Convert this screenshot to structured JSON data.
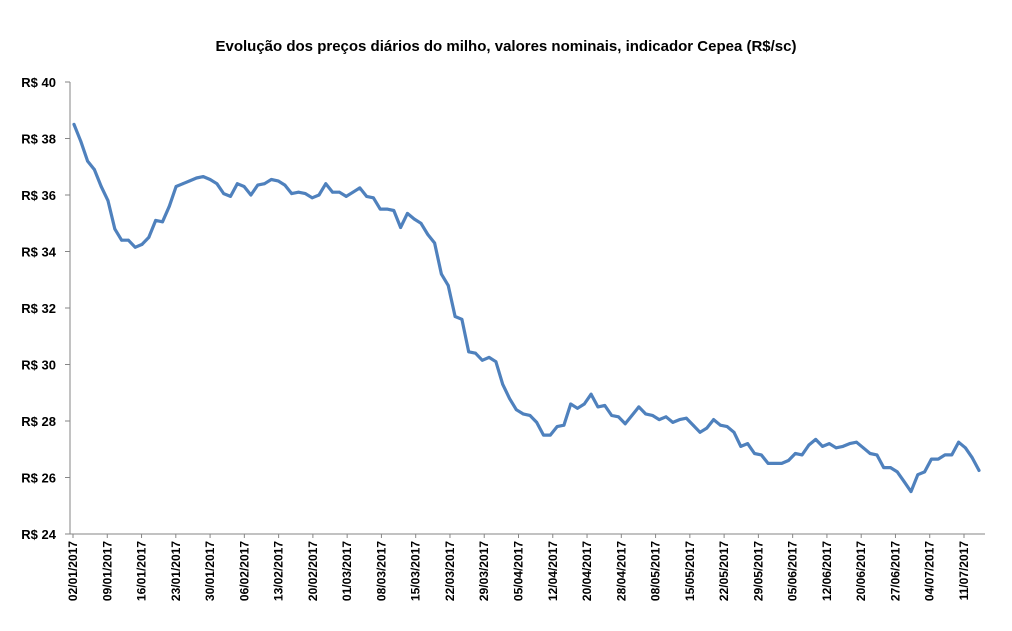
{
  "chart_data": {
    "type": "line",
    "title": "Evolução dos preços diários do milho, valores nominais, indicador Cepea (R$/sc)",
    "xlabel": "",
    "ylabel": "",
    "ylim": [
      24,
      40
    ],
    "yticks": [
      24,
      26,
      28,
      30,
      32,
      34,
      36,
      38,
      40
    ],
    "ytick_prefix": "R$ ",
    "grid": false,
    "legend": "none",
    "line_color": "#4f81bd",
    "xtick_labels": [
      "02/01/2017",
      "09/01/2017",
      "16/01/2017",
      "23/01/2017",
      "30/01/2017",
      "06/02/2017",
      "13/02/2017",
      "20/02/2017",
      "01/03/2017",
      "08/03/2017",
      "15/03/2017",
      "22/03/2017",
      "29/03/2017",
      "05/04/2017",
      "12/04/2017",
      "20/04/2017",
      "28/04/2017",
      "08/05/2017",
      "15/05/2017",
      "22/05/2017",
      "29/05/2017",
      "05/06/2017",
      "12/06/2017",
      "20/06/2017",
      "27/06/2017",
      "04/07/2017",
      "11/07/2017"
    ],
    "series": [
      {
        "values": [
          38.5,
          37.9,
          37.2,
          36.9,
          36.3,
          35.8,
          34.8,
          34.4,
          34.4,
          34.15,
          34.25,
          34.5,
          35.1,
          35.05,
          35.6,
          36.3,
          36.4,
          36.5,
          36.6,
          36.65,
          36.55,
          36.4,
          36.05,
          35.95,
          36.4,
          36.3,
          36.0,
          36.35,
          36.4,
          36.55,
          36.5,
          36.35,
          36.05,
          36.1,
          36.05,
          35.9,
          36.0,
          36.4,
          36.1,
          36.1,
          35.95,
          36.1,
          36.25,
          35.95,
          35.9,
          35.5,
          35.5,
          35.45,
          34.85,
          35.35,
          35.15,
          35.0,
          34.6,
          34.3,
          33.2,
          32.8,
          31.7,
          31.6,
          30.45,
          30.4,
          30.15,
          30.25,
          30.1,
          29.3,
          28.8,
          28.4,
          28.25,
          28.2,
          27.95,
          27.5,
          27.5,
          27.8,
          27.85,
          28.6,
          28.45,
          28.6,
          28.95,
          28.5,
          28.55,
          28.2,
          28.15,
          27.9,
          28.2,
          28.5,
          28.25,
          28.2,
          28.05,
          28.15,
          27.95,
          28.05,
          28.1,
          27.85,
          27.6,
          27.75,
          28.05,
          27.85,
          27.8,
          27.6,
          27.1,
          27.2,
          26.85,
          26.8,
          26.5,
          26.5,
          26.5,
          26.6,
          26.85,
          26.8,
          27.15,
          27.35,
          27.1,
          27.2,
          27.05,
          27.1,
          27.2,
          27.25,
          27.05,
          26.85,
          26.8,
          26.35,
          26.35,
          26.2,
          25.85,
          25.5,
          26.1,
          26.2,
          26.65,
          26.65,
          26.8,
          26.8,
          27.25,
          27.05,
          26.7,
          26.25
        ]
      }
    ]
  }
}
